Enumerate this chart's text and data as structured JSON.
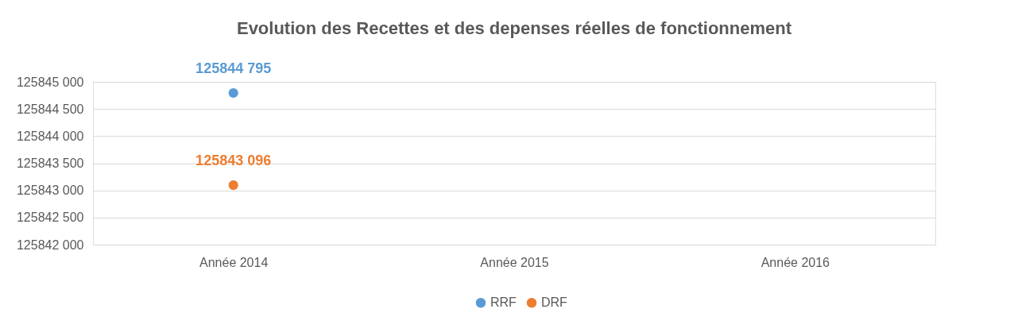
{
  "chart_data": {
    "type": "line",
    "title": "Evolution des Recettes et des depenses réelles de fonctionnement",
    "categories": [
      "Année 2014",
      "Année 2015",
      "Année 2016"
    ],
    "series": [
      {
        "name": "RRF",
        "color": "#5b9bd5",
        "values": [
          125844795,
          null,
          null
        ],
        "value_labels": [
          "125844 795",
          null,
          null
        ]
      },
      {
        "name": "DRF",
        "color": "#ed7d31",
        "values": [
          125843096,
          null,
          null
        ],
        "value_labels": [
          "125843 096",
          null,
          null
        ]
      }
    ],
    "ylim": [
      125842000,
      125845000
    ],
    "yticks": [
      {
        "value": 125842000,
        "label": "125842 000"
      },
      {
        "value": 125842500,
        "label": "125842 500"
      },
      {
        "value": 125843000,
        "label": "125843 000"
      },
      {
        "value": 125843500,
        "label": "125843 500"
      },
      {
        "value": 125844000,
        "label": "125844 000"
      },
      {
        "value": 125844500,
        "label": "125844 500"
      },
      {
        "value": 125845000,
        "label": "125845 000"
      }
    ],
    "grid": "y",
    "legend": "bottom",
    "marker": "circle"
  }
}
